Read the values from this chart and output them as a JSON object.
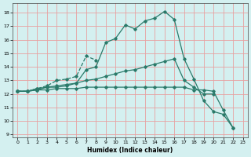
{
  "title": "",
  "xlabel": "Humidex (Indice chaleur)",
  "xlim": [
    -0.5,
    23.5
  ],
  "ylim": [
    8.8,
    18.7
  ],
  "yticks": [
    9,
    10,
    11,
    12,
    13,
    14,
    15,
    16,
    17,
    18
  ],
  "xticks": [
    0,
    1,
    2,
    3,
    4,
    5,
    6,
    7,
    8,
    9,
    10,
    11,
    12,
    13,
    14,
    15,
    16,
    17,
    18,
    19,
    20,
    21,
    22,
    23
  ],
  "background_color": "#d4f0f0",
  "grid_color": "#e8a0a0",
  "line_color": "#2a7a6a",
  "lines": [
    {
      "x": [
        0,
        1,
        2,
        3,
        4,
        5,
        6,
        7,
        8,
        9,
        10,
        11,
        12,
        13,
        14,
        15,
        16,
        17,
        18,
        19,
        20,
        21,
        22
      ],
      "y": [
        12.2,
        12.2,
        12.4,
        12.5,
        12.5,
        12.6,
        12.8,
        13.8,
        14.0,
        15.8,
        16.1,
        17.1,
        16.8,
        17.4,
        17.6,
        18.1,
        17.5,
        14.6,
        13.1,
        11.5,
        10.7,
        10.5,
        9.5
      ],
      "linestyle": "-"
    },
    {
      "x": [
        0,
        1,
        2,
        3,
        4,
        5,
        6,
        7,
        8
      ],
      "y": [
        12.2,
        12.2,
        12.4,
        12.6,
        13.0,
        13.1,
        13.3,
        14.8,
        14.5
      ],
      "linestyle": "--"
    },
    {
      "x": [
        0,
        1,
        2,
        3,
        4,
        5,
        6,
        7,
        8,
        9,
        10,
        11,
        12,
        13,
        14,
        15,
        16,
        17,
        18,
        19,
        20
      ],
      "y": [
        12.2,
        12.2,
        12.3,
        12.5,
        12.6,
        12.7,
        12.8,
        13.0,
        13.1,
        13.3,
        13.5,
        13.7,
        13.8,
        14.0,
        14.2,
        14.4,
        14.6,
        13.0,
        12.5,
        12.0,
        12.0
      ],
      "linestyle": "-"
    },
    {
      "x": [
        0,
        1,
        2,
        3,
        4,
        5,
        6,
        7,
        8,
        9,
        10,
        11,
        12,
        13,
        14,
        15,
        16,
        17,
        18,
        19,
        20,
        21,
        22
      ],
      "y": [
        12.2,
        12.2,
        12.3,
        12.3,
        12.4,
        12.4,
        12.4,
        12.5,
        12.5,
        12.5,
        12.5,
        12.5,
        12.5,
        12.5,
        12.5,
        12.5,
        12.5,
        12.5,
        12.3,
        12.3,
        12.2,
        10.8,
        9.5
      ],
      "linestyle": "-"
    }
  ]
}
